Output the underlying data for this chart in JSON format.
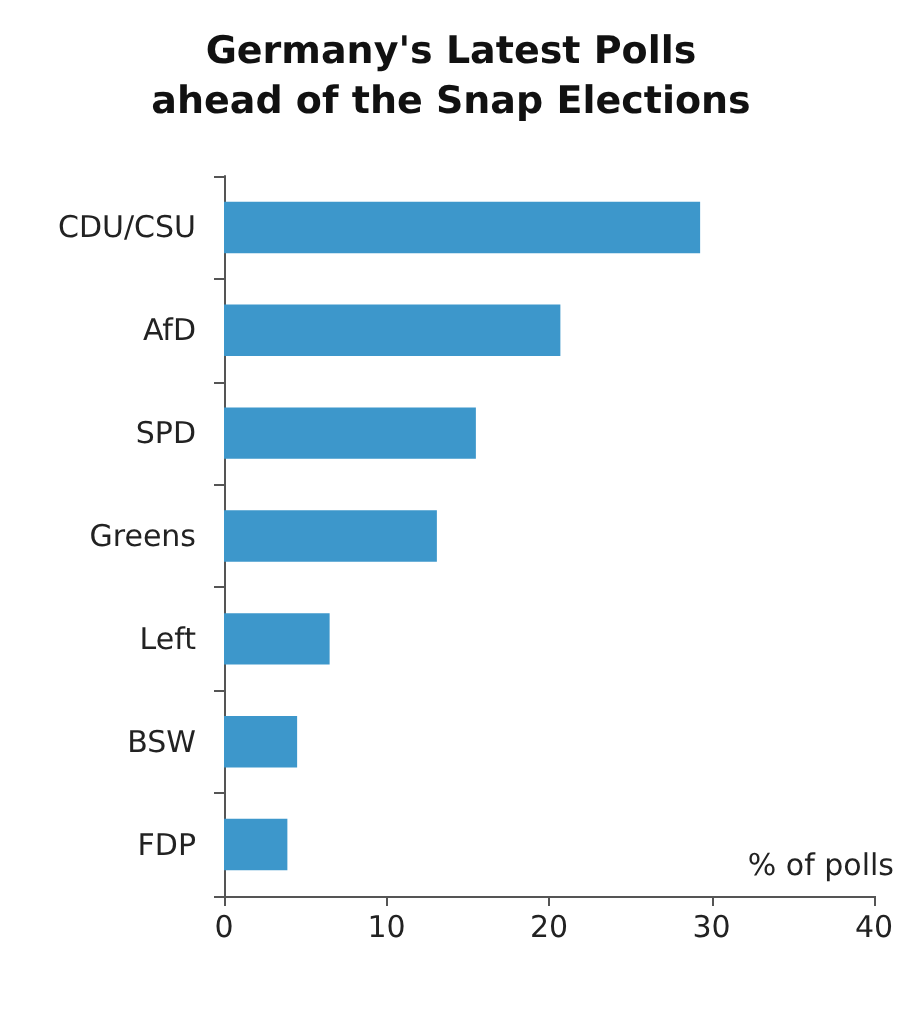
{
  "chart_data": {
    "type": "bar",
    "orientation": "horizontal",
    "title": "Germany's Latest Polls\nahead of the Snap Elections",
    "xlabel": "% of polls",
    "categories": [
      "CDU/CSU",
      "AfD",
      "SPD",
      "Greens",
      "Left",
      "BSW",
      "FDP"
    ],
    "values": [
      29.3,
      20.7,
      15.5,
      13.1,
      6.5,
      4.5,
      3.9
    ],
    "color": "#3d97cb",
    "xlim": [
      0,
      40
    ],
    "xticks": [
      0,
      10,
      20,
      30,
      40
    ],
    "grid": false
  }
}
